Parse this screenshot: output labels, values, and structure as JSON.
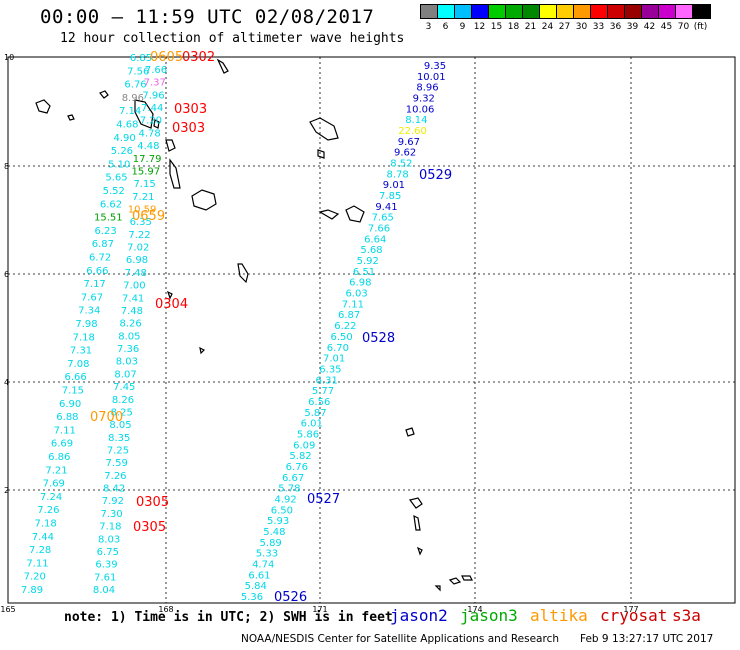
{
  "header": {
    "title": "00:00 – 11:59 UTC 02/08/2017",
    "subtitle": "12 hour collection of altimeter wave heights"
  },
  "scale": {
    "labels": [
      "3",
      "6",
      "9",
      "12",
      "15",
      "18",
      "21",
      "24",
      "27",
      "30",
      "33",
      "36",
      "39",
      "42",
      "45",
      "70",
      "(ft)"
    ],
    "colors": [
      "#808080",
      "#00ffff",
      "#00bfff",
      "#0000ff",
      "#00cc00",
      "#00aa00",
      "#008800",
      "#ffff00",
      "#ffcc00",
      "#ff9900",
      "#ff0000",
      "#cc0000",
      "#990000",
      "#990099",
      "#cc00cc",
      "#ff66ff",
      "#000000"
    ]
  },
  "axes": {
    "x_ticks": [
      "165",
      "168",
      "171",
      "174",
      "177"
    ],
    "y_ticks": [
      "10",
      "8",
      "6",
      "4",
      "2"
    ]
  },
  "track_colors": {
    "cyan": "#00d8e8",
    "blue": "#0000cc",
    "green": "#00a000",
    "orange": "#ff9900",
    "yellow": "#eeee00",
    "pink": "#ee66ee",
    "gray": "#888888",
    "red": "#ff0000",
    "black": "#000000"
  },
  "tracks": {
    "left_a": [
      {
        "v": "6.85",
        "c": "cyan"
      },
      {
        "v": "7.56",
        "c": "cyan"
      },
      {
        "v": "6.76",
        "c": "cyan"
      },
      {
        "v": "8.96",
        "c": "gray"
      },
      {
        "v": "7.14",
        "c": "cyan"
      },
      {
        "v": "4.68",
        "c": "cyan"
      },
      {
        "v": "4.90",
        "c": "cyan"
      },
      {
        "v": "5.26",
        "c": "cyan"
      },
      {
        "v": "5.10",
        "c": "cyan"
      },
      {
        "v": "5.65",
        "c": "cyan"
      },
      {
        "v": "5.52",
        "c": "cyan"
      },
      {
        "v": "6.62",
        "c": "cyan"
      },
      {
        "v": "15.51",
        "c": "green"
      },
      {
        "v": "6.23",
        "c": "cyan"
      },
      {
        "v": "6.87",
        "c": "cyan"
      },
      {
        "v": "6.72",
        "c": "cyan"
      },
      {
        "v": "6.66",
        "c": "cyan"
      },
      {
        "v": "7.17",
        "c": "cyan"
      },
      {
        "v": "7.67",
        "c": "cyan"
      },
      {
        "v": "7.34",
        "c": "cyan"
      },
      {
        "v": "7.98",
        "c": "cyan"
      },
      {
        "v": "7.18",
        "c": "cyan"
      },
      {
        "v": "7.31",
        "c": "cyan"
      },
      {
        "v": "7.08",
        "c": "cyan"
      },
      {
        "v": "6.66",
        "c": "cyan"
      },
      {
        "v": "7.15",
        "c": "cyan"
      },
      {
        "v": "6.90",
        "c": "cyan"
      },
      {
        "v": "6.88",
        "c": "cyan"
      },
      {
        "v": "7.11",
        "c": "cyan"
      },
      {
        "v": "6.69",
        "c": "cyan"
      },
      {
        "v": "6.86",
        "c": "cyan"
      },
      {
        "v": "7.21",
        "c": "cyan"
      },
      {
        "v": "7.69",
        "c": "cyan"
      },
      {
        "v": "7.24",
        "c": "cyan"
      },
      {
        "v": "7.26",
        "c": "cyan"
      },
      {
        "v": "7.18",
        "c": "cyan"
      },
      {
        "v": "7.44",
        "c": "cyan"
      },
      {
        "v": "7.28",
        "c": "cyan"
      },
      {
        "v": "7.11",
        "c": "cyan"
      },
      {
        "v": "7.20",
        "c": "cyan"
      },
      {
        "v": "7.89",
        "c": "cyan"
      }
    ],
    "left_b": [
      {
        "v": "7.66",
        "c": "cyan"
      },
      {
        "v": "7.37",
        "c": "pink"
      },
      {
        "v": "7.96",
        "c": "cyan"
      },
      {
        "v": "7.44",
        "c": "cyan"
      },
      {
        "v": "7.20",
        "c": "cyan"
      },
      {
        "v": "4.78",
        "c": "cyan"
      },
      {
        "v": "4.48",
        "c": "cyan"
      },
      {
        "v": "17.79",
        "c": "green"
      },
      {
        "v": "15.97",
        "c": "green"
      },
      {
        "v": "7.15",
        "c": "cyan"
      },
      {
        "v": "7.21",
        "c": "cyan"
      },
      {
        "v": "10.59",
        "c": "orange"
      },
      {
        "v": "6.35",
        "c": "cyan"
      },
      {
        "v": "7.22",
        "c": "cyan"
      },
      {
        "v": "7.02",
        "c": "cyan"
      },
      {
        "v": "6.98",
        "c": "cyan"
      },
      {
        "v": "7.48",
        "c": "cyan"
      },
      {
        "v": "7.00",
        "c": "cyan"
      },
      {
        "v": "7.41",
        "c": "cyan"
      },
      {
        "v": "7.48",
        "c": "cyan"
      },
      {
        "v": "8.26",
        "c": "cyan"
      },
      {
        "v": "8.05",
        "c": "cyan"
      },
      {
        "v": "7.36",
        "c": "cyan"
      },
      {
        "v": "8.03",
        "c": "cyan"
      },
      {
        "v": "8.07",
        "c": "cyan"
      },
      {
        "v": "7.45",
        "c": "cyan"
      },
      {
        "v": "8.26",
        "c": "cyan"
      },
      {
        "v": "8.25",
        "c": "cyan"
      },
      {
        "v": "8.05",
        "c": "cyan"
      },
      {
        "v": "8.35",
        "c": "cyan"
      },
      {
        "v": "7.25",
        "c": "cyan"
      },
      {
        "v": "7.59",
        "c": "cyan"
      },
      {
        "v": "7.26",
        "c": "cyan"
      },
      {
        "v": "8.42",
        "c": "cyan"
      },
      {
        "v": "7.92",
        "c": "cyan"
      },
      {
        "v": "7.30",
        "c": "cyan"
      },
      {
        "v": "7.18",
        "c": "cyan"
      },
      {
        "v": "8.03",
        "c": "cyan"
      },
      {
        "v": "6.75",
        "c": "cyan"
      },
      {
        "v": "6.39",
        "c": "cyan"
      },
      {
        "v": "7.61",
        "c": "cyan"
      },
      {
        "v": "8.04",
        "c": "cyan"
      }
    ],
    "right": [
      {
        "v": "9.35",
        "c": "blue"
      },
      {
        "v": "10.01",
        "c": "blue"
      },
      {
        "v": "8.96",
        "c": "blue"
      },
      {
        "v": "9.32",
        "c": "blue"
      },
      {
        "v": "10.06",
        "c": "blue"
      },
      {
        "v": "8.14",
        "c": "cyan"
      },
      {
        "v": "22.60",
        "c": "yellow"
      },
      {
        "v": "9.67",
        "c": "blue"
      },
      {
        "v": "9.62",
        "c": "blue"
      },
      {
        "v": "8.52",
        "c": "cyan"
      },
      {
        "v": "8.78",
        "c": "cyan"
      },
      {
        "v": "9.01",
        "c": "blue"
      },
      {
        "v": "7.85",
        "c": "cyan"
      },
      {
        "v": "9.41",
        "c": "blue"
      },
      {
        "v": "7.65",
        "c": "cyan"
      },
      {
        "v": "7.66",
        "c": "cyan"
      },
      {
        "v": "6.64",
        "c": "cyan"
      },
      {
        "v": "5.68",
        "c": "cyan"
      },
      {
        "v": "5.92",
        "c": "cyan"
      },
      {
        "v": "6.51",
        "c": "cyan"
      },
      {
        "v": "6.98",
        "c": "cyan"
      },
      {
        "v": "6.03",
        "c": "cyan"
      },
      {
        "v": "7.11",
        "c": "cyan"
      },
      {
        "v": "6.87",
        "c": "cyan"
      },
      {
        "v": "6.22",
        "c": "cyan"
      },
      {
        "v": "6.50",
        "c": "cyan"
      },
      {
        "v": "6.70",
        "c": "cyan"
      },
      {
        "v": "7.01",
        "c": "cyan"
      },
      {
        "v": "6.35",
        "c": "cyan"
      },
      {
        "v": "6.31",
        "c": "cyan"
      },
      {
        "v": "5.77",
        "c": "cyan"
      },
      {
        "v": "6.56",
        "c": "cyan"
      },
      {
        "v": "5.87",
        "c": "cyan"
      },
      {
        "v": "6.01",
        "c": "cyan"
      },
      {
        "v": "5.86",
        "c": "cyan"
      },
      {
        "v": "6.09",
        "c": "cyan"
      },
      {
        "v": "5.82",
        "c": "cyan"
      },
      {
        "v": "6.76",
        "c": "cyan"
      },
      {
        "v": "6.67",
        "c": "cyan"
      },
      {
        "v": "5.78",
        "c": "cyan"
      },
      {
        "v": "4.92",
        "c": "cyan"
      },
      {
        "v": "6.50",
        "c": "cyan"
      },
      {
        "v": "5.93",
        "c": "cyan"
      },
      {
        "v": "5.48",
        "c": "cyan"
      },
      {
        "v": "5.89",
        "c": "cyan"
      },
      {
        "v": "5.33",
        "c": "cyan"
      },
      {
        "v": "4.74",
        "c": "cyan"
      },
      {
        "v": "6.61",
        "c": "cyan"
      },
      {
        "v": "5.84",
        "c": "cyan"
      },
      {
        "v": "5.36",
        "c": "cyan"
      }
    ]
  },
  "time_labels": [
    {
      "t": "0302",
      "c": "red"
    },
    {
      "t": "0303",
      "c": "red"
    },
    {
      "t": "0303",
      "c": "red"
    },
    {
      "t": "0304",
      "c": "red"
    },
    {
      "t": "0305",
      "c": "red"
    },
    {
      "t": "0305",
      "c": "red"
    },
    {
      "t": "0700",
      "c": "orange"
    },
    {
      "t": "0659",
      "c": "orange"
    },
    {
      "t": "0605",
      "c": "orange"
    },
    {
      "t": "0529",
      "c": "blue"
    },
    {
      "t": "0528",
      "c": "blue"
    },
    {
      "t": "0527",
      "c": "blue"
    },
    {
      "t": "0526",
      "c": "blue"
    }
  ],
  "footer": {
    "note": "note: 1) Time is in UTC; 2) SWH is in feet",
    "legend": [
      {
        "label": "jason2",
        "color": "#0000cc"
      },
      {
        "label": "jason3",
        "color": "#00aa00"
      },
      {
        "label": "altika",
        "color": "#ff9900"
      },
      {
        "label": "cryosat",
        "color": "#cc0000"
      },
      {
        "label": "s3a",
        "color": "#cc0000"
      }
    ],
    "credit": "NOAA/NESDIS Center for Satellite Applications and Research",
    "timestamp": "Feb  9 13:27:17 UTC 2017"
  }
}
